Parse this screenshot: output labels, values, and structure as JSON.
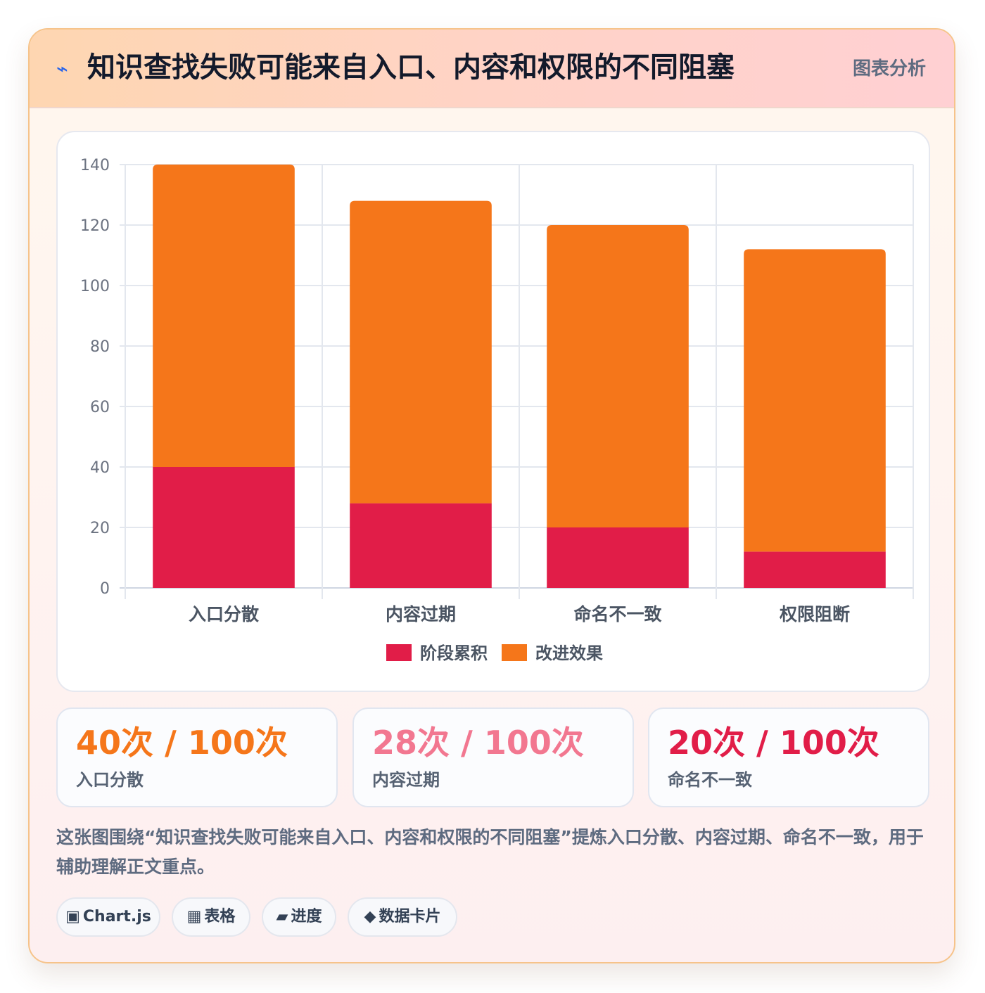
{
  "header": {
    "icon": "lightning-icon",
    "icon_glyph": "⌁",
    "title": "知识查找失败可能来自入口、内容和权限的不同阻塞",
    "tag": "图表分析"
  },
  "chart_data": {
    "type": "bar",
    "stacked": true,
    "categories": [
      "入口分散",
      "内容过期",
      "命名不一致",
      "权限阻断"
    ],
    "series": [
      {
        "name": "阶段累积",
        "values": [
          40,
          28,
          20,
          12
        ],
        "color": "#e11d48"
      },
      {
        "name": "改进效果",
        "values": [
          100,
          100,
          100,
          100
        ],
        "color": "#f5761a"
      }
    ],
    "y_ticks": [
      0,
      20,
      40,
      60,
      80,
      100,
      120,
      140
    ],
    "ylim": [
      0,
      140
    ],
    "grid": true,
    "legend_position": "bottom"
  },
  "stats": [
    {
      "value": "40次 / 100次",
      "label": "入口分散",
      "color": "#f5761a"
    },
    {
      "value": "28次 / 100次",
      "label": "内容过期",
      "color": "#f27790"
    },
    {
      "value": "20次 / 100次",
      "label": "命名不一致",
      "color": "#e11d48"
    }
  ],
  "description": "这张图围绕“知识查找失败可能来自入口、内容和权限的不同阻塞”提炼入口分散、内容过期、命名不一致，用于辅助理解正文重点。",
  "chips": [
    {
      "icon": "chart-icon",
      "glyph": "▣",
      "label": "Chart.js"
    },
    {
      "icon": "table-icon",
      "glyph": "▦",
      "label": "表格"
    },
    {
      "icon": "progress-icon",
      "glyph": "▰",
      "label": "进度"
    },
    {
      "icon": "data-card-icon",
      "glyph": "◆",
      "label": "数据卡片"
    }
  ]
}
